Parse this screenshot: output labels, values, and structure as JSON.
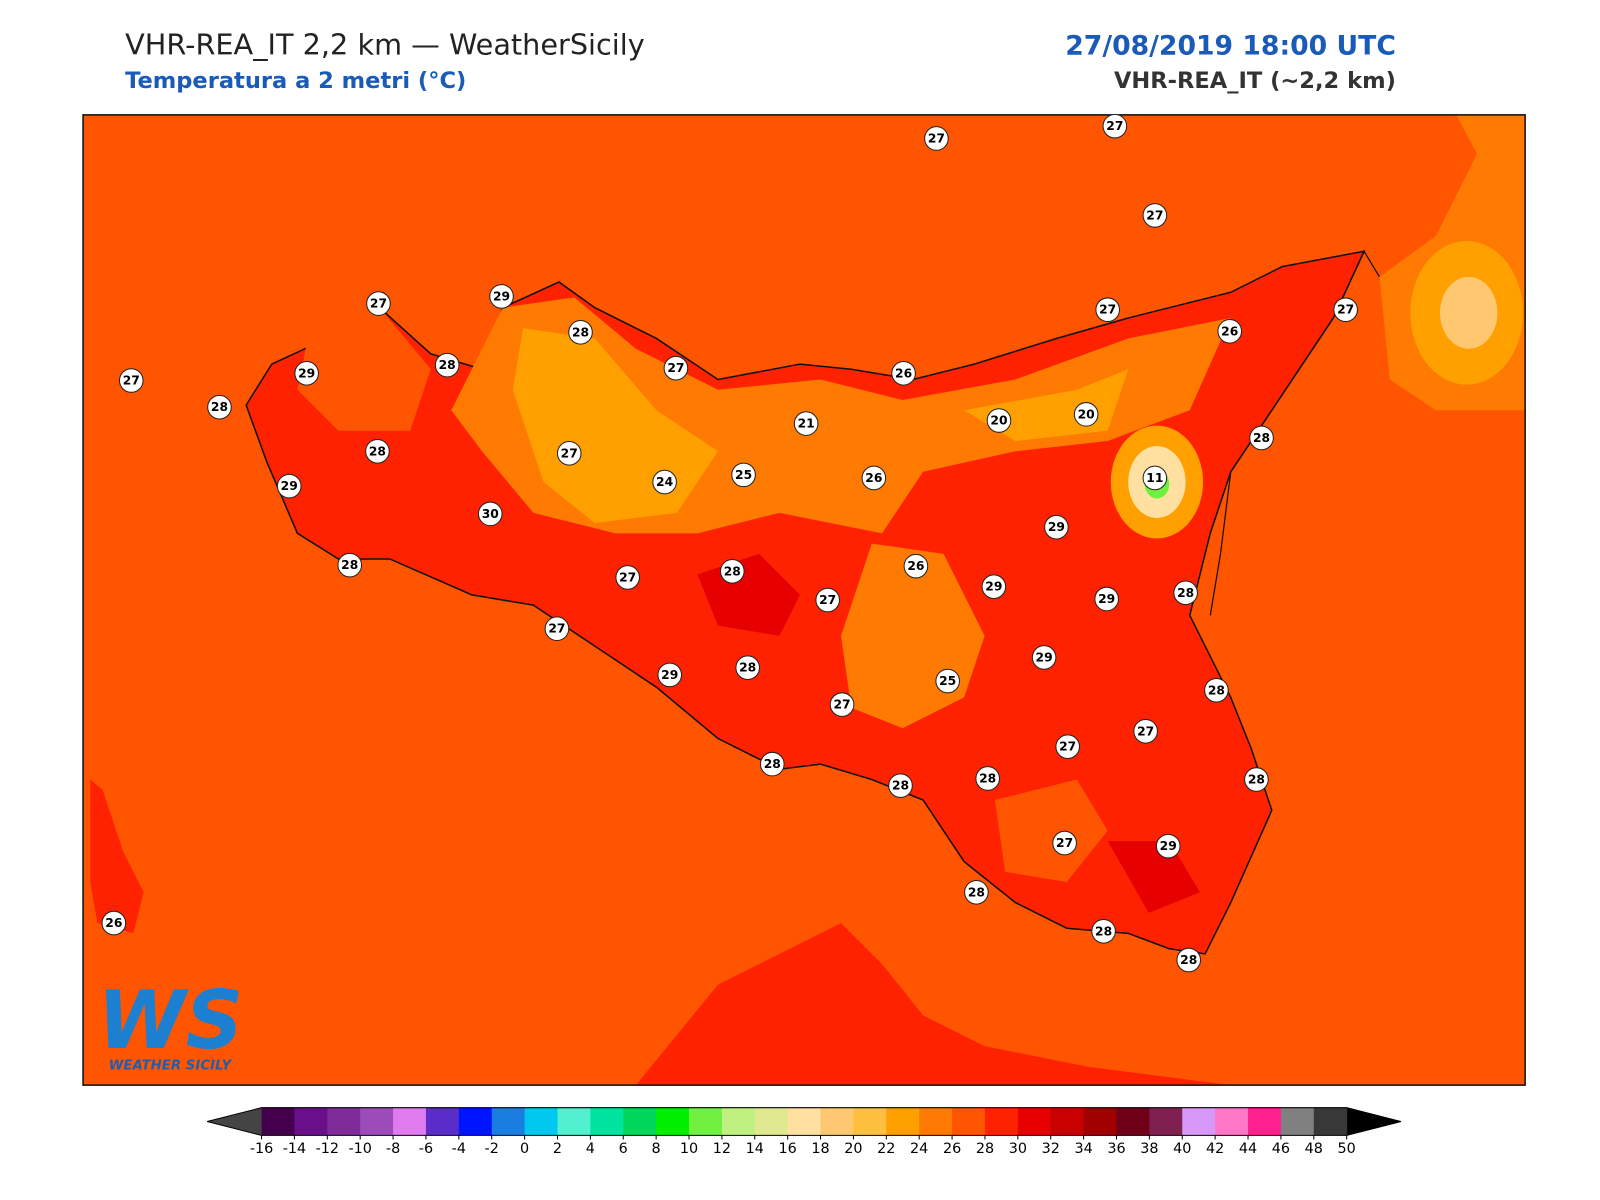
{
  "header": {
    "title": "VHR-REA_IT 2,2 km — WeatherSicily",
    "subtitle": "Temperatura a 2 metri (°C)",
    "datetime": "27/08/2019 18:00 UTC",
    "model": "VHR-REA_IT (~2,2 km)"
  },
  "stations": [
    27,
    27,
    27,
    27,
    29,
    28,
    28,
    29,
    27,
    28,
    27,
    26,
    27,
    26,
    27,
    21,
    20,
    20,
    28,
    28,
    27,
    24,
    25,
    26,
    11,
    29,
    30,
    29,
    28,
    27,
    26,
    27,
    29,
    29,
    28,
    28,
    27,
    29,
    29,
    28,
    25,
    27,
    28,
    27,
    27,
    28,
    28,
    28,
    28,
    27,
    29,
    28,
    28,
    28,
    26
  ],
  "logo": {
    "mark": "WS",
    "text": "Weather Sicily"
  },
  "colorbar": {
    "ticks": [
      -16,
      -14,
      -12,
      -10,
      -8,
      -6,
      -4,
      -2,
      0,
      2,
      4,
      6,
      8,
      10,
      12,
      14,
      16,
      18,
      20,
      22,
      24,
      26,
      28,
      30,
      32,
      34,
      36,
      38,
      40,
      42,
      44,
      46,
      48,
      50
    ],
    "colors": [
      "#44004d",
      "#6a0f8a",
      "#7f2b9a",
      "#9b4cba",
      "#e07aef",
      "#5a2dc8",
      "#0015ff",
      "#1a7de0",
      "#00c8ee",
      "#50f0d0",
      "#00e4a0",
      "#00d75a",
      "#00f000",
      "#70f040",
      "#c0f080",
      "#e0e890",
      "#ffe0a0",
      "#ffc870",
      "#ffc040",
      "#ffa000",
      "#ff7a00",
      "#ff5500",
      "#ff2200",
      "#e60000",
      "#c80000",
      "#a00000",
      "#700018",
      "#802050",
      "#d898f8",
      "#ff78c8",
      "#ff2090",
      "#808080",
      "#383838"
    ],
    "under_color": "#444444",
    "over_color": "#000000"
  }
}
